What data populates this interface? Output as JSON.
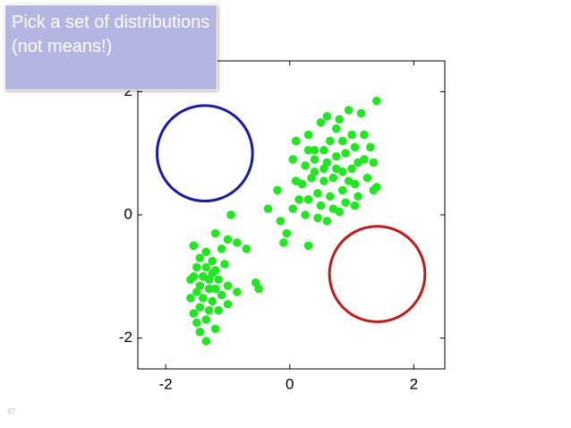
{
  "chart_data": {
    "type": "scatter",
    "annotations": [
      "Pick a set of distributions (not means!)"
    ],
    "slide_number": "67",
    "color": "#22e622",
    "x": [
      -1.55,
      -1.2,
      -1.0,
      -0.95,
      -0.85,
      -1.35,
      -1.1,
      -1.25,
      -1.45,
      -1.5,
      -1.35,
      -1.2,
      -1.05,
      -1.4,
      -1.55,
      -1.3,
      -1.15,
      -1.45,
      -1.3,
      -1.5,
      -1.2,
      -1.0,
      -1.6,
      -1.4,
      -1.25,
      -1.1,
      -1.45,
      -1.3,
      -1.55,
      -1.15,
      -1.35,
      -1.5,
      -1.2,
      -1.35,
      -1.45,
      -0.85,
      -0.55,
      -0.5,
      -0.7,
      -1.0,
      -1.6,
      -1.25,
      -0.35,
      -0.15,
      -0.05,
      -0.1,
      0.3,
      -0.2,
      0.05,
      0.05,
      0.1,
      0.3,
      0.25,
      0.4,
      0.55,
      0.5,
      0.6,
      0.75,
      0.8,
      0.95,
      1.15,
      1.4,
      0.4,
      0.6,
      0.75,
      0.9,
      1.05,
      1.2,
      1.3,
      1.2,
      1.35,
      1.0,
      0.85,
      0.7,
      0.55,
      0.35,
      0.2,
      0.45,
      0.65,
      0.85,
      1.05,
      1.25,
      1.4,
      1.1,
      0.9,
      0.7,
      0.5,
      0.3,
      0.15,
      0.25,
      0.45,
      0.6,
      0.8,
      1.05,
      1.35,
      1.1,
      0.95,
      0.75,
      0.55,
      0.4,
      0.65,
      0.85,
      1.0,
      0.3,
      0.1
    ],
    "values": [
      -0.5,
      -0.3,
      -0.4,
      0.0,
      -0.45,
      -0.6,
      -0.55,
      -0.75,
      -0.7,
      -0.85,
      -0.85,
      -0.9,
      -0.8,
      -1.0,
      -1.0,
      -1.05,
      -1.05,
      -1.15,
      -1.2,
      -1.25,
      -1.2,
      -1.15,
      -1.35,
      -1.35,
      -1.4,
      -1.3,
      -1.5,
      -1.55,
      -1.6,
      -1.55,
      -1.7,
      -1.75,
      -1.85,
      -2.05,
      -1.9,
      -1.25,
      -1.1,
      -1.2,
      -0.55,
      -1.45,
      -1.05,
      -0.95,
      0.1,
      -0.1,
      -0.3,
      -0.45,
      -0.5,
      0.4,
      0.1,
      0.9,
      1.2,
      1.3,
      0.8,
      0.9,
      1.05,
      1.5,
      1.6,
      1.4,
      1.55,
      1.7,
      1.65,
      1.85,
      1.05,
      0.85,
      0.95,
      1.0,
      1.1,
      1.3,
      1.1,
      0.9,
      0.85,
      0.75,
      0.7,
      0.6,
      0.55,
      0.6,
      0.5,
      0.35,
      0.3,
      0.4,
      0.5,
      0.6,
      0.45,
      0.3,
      0.2,
      0.1,
      0.15,
      0.25,
      0.25,
      0.0,
      -0.05,
      -0.1,
      0.05,
      0.15,
      0.4,
      0.85,
      0.55,
      0.75,
      0.75,
      0.7,
      1.2,
      1.2,
      1.3,
      1.05,
      0.55
    ],
    "circles": [
      {
        "color": "#1a1aa6",
        "cx": -1.37,
        "cy": 1.0,
        "r": 0.77
      },
      {
        "color": "#c01a1a",
        "cx": 1.41,
        "cy": -0.96,
        "r": 0.77
      }
    ],
    "xlim": [
      -2.45,
      2.5
    ],
    "ylim": [
      -2.5,
      2.5
    ],
    "xticks": [
      -2,
      0,
      2
    ],
    "yticks": [
      -2,
      0,
      2
    ]
  }
}
